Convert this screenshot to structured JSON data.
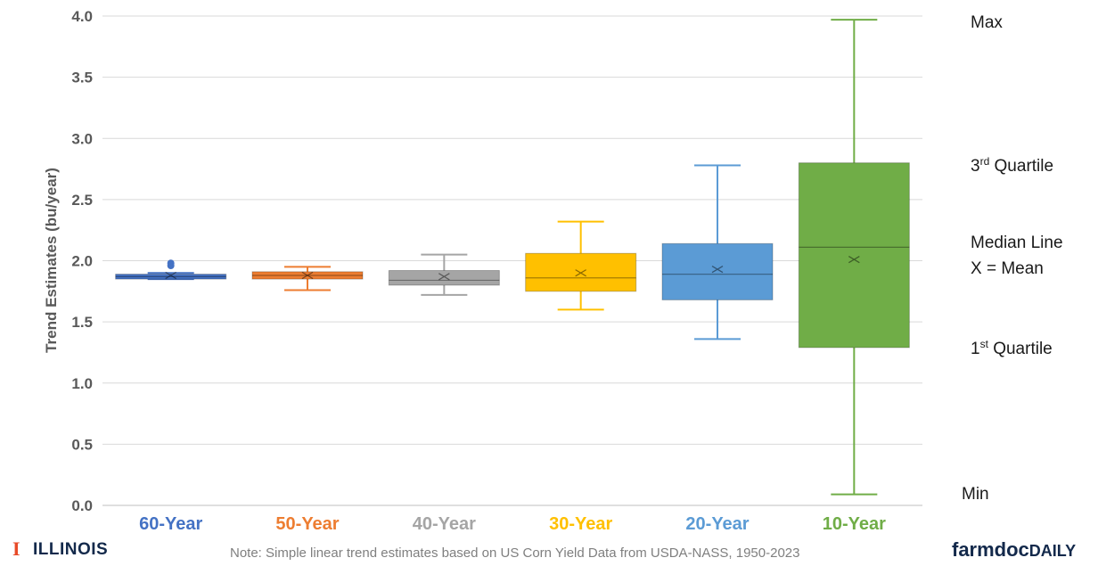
{
  "chart_data": {
    "type": "box",
    "title": "",
    "ylabel": "Trend Estimates (bu/year)",
    "xlabel": "",
    "ylim": [
      0,
      4
    ],
    "yticks": [
      "0.0",
      "0.5",
      "1.0",
      "1.5",
      "2.0",
      "2.5",
      "3.0",
      "3.5",
      "4.0"
    ],
    "grid": true,
    "categories": [
      "60-Year",
      "50-Year",
      "40-Year",
      "30-Year",
      "20-Year",
      "10-Year"
    ],
    "series": [
      {
        "category": "60-Year",
        "color": "#4472c4",
        "min": 1.85,
        "q1": 1.85,
        "median": 1.87,
        "mean": 1.88,
        "q3": 1.89,
        "max": 1.9,
        "outliers": [
          1.96,
          1.98
        ]
      },
      {
        "category": "50-Year",
        "color": "#ed7d31",
        "min": 1.76,
        "q1": 1.85,
        "median": 1.88,
        "mean": 1.88,
        "q3": 1.91,
        "max": 1.95,
        "outliers": []
      },
      {
        "category": "40-Year",
        "color": "#a5a5a5",
        "min": 1.72,
        "q1": 1.8,
        "median": 1.84,
        "mean": 1.87,
        "q3": 1.92,
        "max": 2.05,
        "outliers": []
      },
      {
        "category": "30-Year",
        "color": "#ffc000",
        "min": 1.6,
        "q1": 1.75,
        "median": 1.86,
        "mean": 1.9,
        "q3": 2.06,
        "max": 2.32,
        "outliers": []
      },
      {
        "category": "20-Year",
        "color": "#5b9bd5",
        "min": 1.36,
        "q1": 1.68,
        "median": 1.89,
        "mean": 1.93,
        "q3": 2.14,
        "max": 2.78,
        "outliers": []
      },
      {
        "category": "10-Year",
        "color": "#70ad47",
        "min": 0.09,
        "q1": 1.29,
        "median": 2.11,
        "mean": 2.01,
        "q3": 2.8,
        "max": 3.97,
        "outliers": []
      }
    ],
    "annotations": {
      "max": "Max",
      "q3_main": "3",
      "q3_sup": "rd",
      "q3_rest": " Quartile",
      "median": "Median Line",
      "mean": "X = Mean",
      "q1_main": "1",
      "q1_sup": "st",
      "q1_rest": " Quartile",
      "min": "Min"
    }
  },
  "footer": {
    "note": "Note: Simple linear trend estimates based on US Corn Yield Data from USDA-NASS, 1950-2023",
    "logo_left_mark": "I",
    "logo_left": "ILLINOIS",
    "logo_right_a": "farmdoc",
    "logo_right_b": "DAILY"
  },
  "colors": {
    "grid": "#d9d9d9",
    "axis": "#bfbfbf",
    "illinois_orange": "#e84a27",
    "illinois_blue": "#13294b"
  }
}
